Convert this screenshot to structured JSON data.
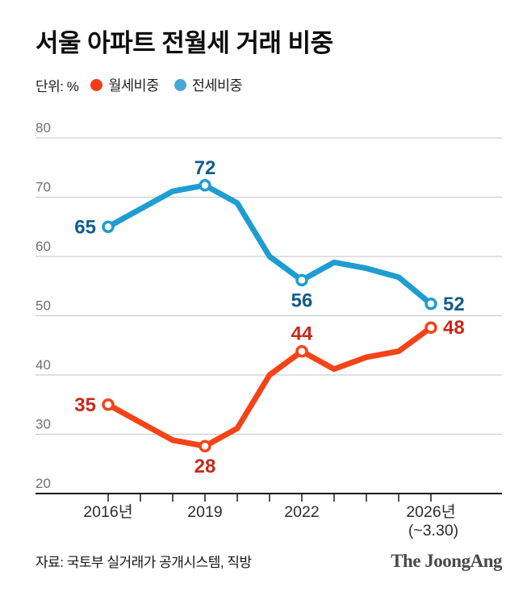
{
  "header": {
    "title": "서울 아파트 전월세 거래 비중",
    "unit_label": "단위: %"
  },
  "legend": {
    "items": [
      {
        "label": "월세비중",
        "color": "#f23d17"
      },
      {
        "label": "전세비중",
        "color": "#4aa6d6"
      }
    ]
  },
  "chart_data": {
    "type": "line",
    "title": "서울 아파트 전월세 거래 비중",
    "unit": "%",
    "x": [
      2016,
      2017,
      2018,
      2019,
      2020,
      2021,
      2022,
      2023,
      2024,
      2025,
      2026
    ],
    "x_axis": {
      "labeled_ticks": [
        {
          "x": 2016,
          "label": "2016년"
        },
        {
          "x": 2019,
          "label": "2019"
        },
        {
          "x": 2022,
          "label": "2022"
        },
        {
          "x": 2026,
          "label": "2026년",
          "sublabel": "(~3.30)"
        }
      ]
    },
    "y_axis": {
      "min": 20,
      "max": 80,
      "ticks": [
        20,
        30,
        40,
        50,
        60,
        70,
        80
      ],
      "gridlines": true
    },
    "legend_position": "top",
    "series": [
      {
        "id": "jeonse",
        "name": "전세비중",
        "line_color": "#1e9dd0",
        "label_color": "#135c8c",
        "values": [
          65,
          68,
          71,
          72,
          69,
          60,
          56,
          59,
          58,
          56.5,
          52
        ],
        "labeled_points": [
          {
            "x": 2016,
            "value": 65
          },
          {
            "x": 2019,
            "value": 72
          },
          {
            "x": 2022,
            "value": 56
          },
          {
            "x": 2026,
            "value": 52
          }
        ]
      },
      {
        "id": "wolse",
        "name": "월세비중",
        "line_color": "#f54318",
        "label_color": "#c7281a",
        "values": [
          35,
          32,
          29,
          28,
          31,
          40,
          44,
          41,
          43,
          44,
          48
        ],
        "labeled_points": [
          {
            "x": 2016,
            "value": 35
          },
          {
            "x": 2019,
            "value": 28
          },
          {
            "x": 2022,
            "value": 44
          },
          {
            "x": 2026,
            "value": 48
          }
        ]
      }
    ]
  },
  "footer": {
    "source": "자료: 국토부 실거래가 공개시스템, 직방",
    "logo": "The JoongAng"
  }
}
